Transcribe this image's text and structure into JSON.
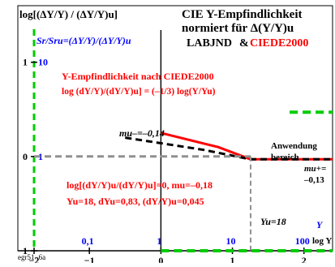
{
  "header": {
    "yaxis_title": "log[(ΔY/Y) / (ΔY/Y)u]",
    "title_line1": "CIE Y-Empfindlichkeit",
    "title_line2": "normiert für Δ(Y/Y)u",
    "ratio_label": "Sr/Sru=(ΔY/Y)/(ΔY/Y)u",
    "labjnd": "LABJND",
    "ampersand": "&",
    "ciede": "CIEDE2000"
  },
  "annotations": {
    "curve_title": "Y-Empfindlichkeit nach CIEDE2000",
    "curve_formula": "log (dY/Y)/(dY/Y)u] = (–1/3) log(Y/Yu)",
    "m_minus": "mu–=–0,14",
    "anwendung1": "Anwendung",
    "anwendung2": "bereich",
    "m_plus1": "mu+=",
    "m_plus2": "–0,13",
    "cond1": "log[(dY/Y)u/(dY/Y)u]=0, mu=–0,18",
    "cond2": "Yu=18, dYu=0,83, (dY/Y)u=0,045",
    "yu_label": "Yu=18",
    "y_axis_var": "Y",
    "xaxis_title": "log Y",
    "footer": "egr51−6a"
  },
  "colors": {
    "red": "#ff0000",
    "blue": "#0000ff",
    "green": "#00cc00",
    "gray": "#909090",
    "black": "#000000"
  },
  "chart_data": {
    "type": "line",
    "xlim": [
      -2,
      2.4
    ],
    "ylim": [
      -1,
      1.6
    ],
    "x_ticks": [
      -2,
      -1,
      0,
      1,
      2
    ],
    "x_tick_labels": [
      "−2",
      "−1",
      "0",
      "1",
      "2"
    ],
    "y_ticks": [
      -1,
      0,
      1
    ],
    "y_tick_labels": [
      "−1",
      "0",
      "1"
    ],
    "linear_ticks": [
      {
        "x": -1,
        "label": "0,1"
      },
      {
        "x": 0,
        "label": "1"
      },
      {
        "x": 1,
        "label": "10"
      },
      {
        "x": 2,
        "label": "100"
      }
    ],
    "left_axis_labels": [
      {
        "y": 1,
        "label": "10"
      },
      {
        "y": 0,
        "label": "1"
      }
    ],
    "series": [
      {
        "style": "red-solid",
        "x": [
          0.0,
          0.8,
          1.255,
          1.8,
          2.4
        ],
        "y": [
          0.25,
          0.1,
          -0.03,
          -0.03,
          -0.03
        ]
      },
      {
        "style": "black-dashed",
        "x": [
          -0.5,
          0.6,
          1.255,
          2.4
        ],
        "y": [
          0.2,
          0.07,
          -0.03,
          -0.03
        ]
      },
      {
        "style": "gray-dashed-horizontal",
        "x": [
          -1.9,
          1.255
        ],
        "y": [
          0,
          0
        ]
      },
      {
        "style": "gray-dashed-vertical",
        "x": [
          1.255,
          1.255
        ],
        "y": [
          0,
          -1
        ]
      },
      {
        "style": "green-dashed-top",
        "x": [
          1.8,
          2.4
        ],
        "y": [
          0.47,
          0.47
        ]
      },
      {
        "style": "green-dashed-bottom",
        "x": [
          0.0,
          2.4
        ],
        "y": [
          -1,
          -1
        ]
      }
    ]
  }
}
